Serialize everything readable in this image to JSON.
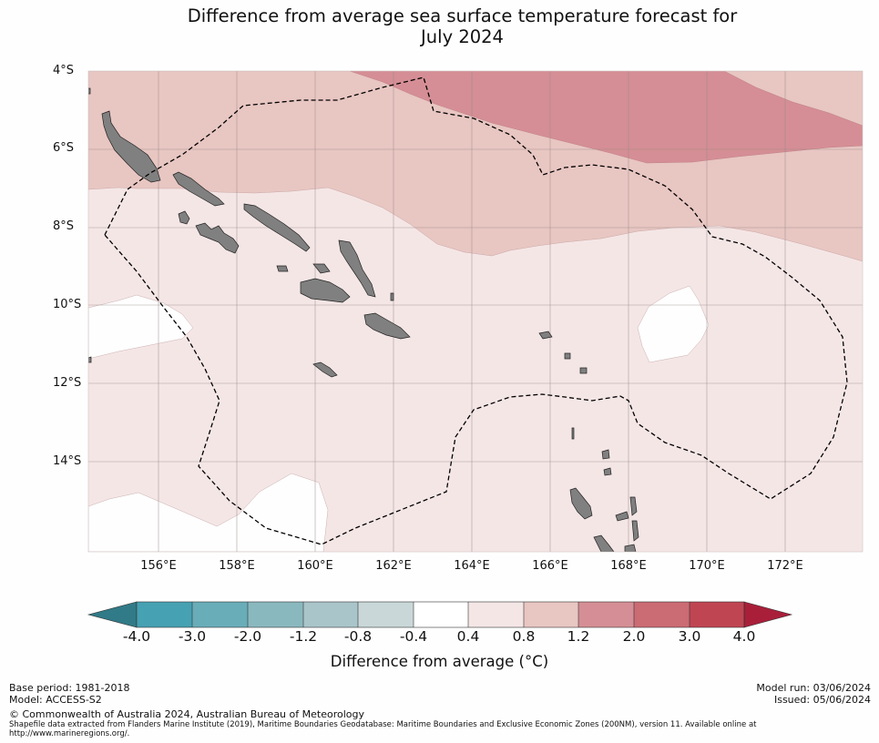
{
  "title": {
    "line1": "Difference from average sea surface temperature forecast for",
    "line2": "July 2024"
  },
  "map": {
    "lat_labels": [
      "4°S",
      "6°S",
      "8°S",
      "10°S",
      "12°S",
      "14°S"
    ],
    "lon_labels": [
      "156°E",
      "158°E",
      "160°E",
      "162°E",
      "164°E",
      "166°E",
      "168°E",
      "170°E",
      "172°E"
    ],
    "extent": {
      "lon_min": 154.2,
      "lon_max": 174.0,
      "lat_min": -16.3,
      "lat_max": -4.0
    },
    "colors": {
      "band_0_0.4": "#fefefe",
      "band_0.4_0.8": "#f5e6e6",
      "band_0.8_1.2": "#e8c6c2",
      "band_1.2_2.0": "#d58e95",
      "land": "#808080",
      "grid": "#9a8a8a",
      "eez_boundary": "#000000"
    }
  },
  "colorbar": {
    "labels": [
      "-4.0",
      "-3.0",
      "-2.0",
      "-1.2",
      "-0.8",
      "-0.4",
      "0.4",
      "0.8",
      "1.2",
      "2.0",
      "3.0",
      "4.0"
    ],
    "colors": [
      "#46a1b2",
      "#68adb8",
      "#8ab8bf",
      "#a9c5c9",
      "#c9d7d8",
      "#ffffff",
      "#f5e6e6",
      "#e8c6c2",
      "#d58e95",
      "#cb6b74",
      "#c04553"
    ],
    "under_color": "#317a87",
    "over_color": "#a91f3a",
    "title": "Difference from average (°C)"
  },
  "footer": {
    "base_period": "Base period: 1981-2018",
    "model": "Model: ACCESS-S2",
    "model_run": "Model run: 03/06/2024",
    "issued": "Issued: 05/06/2024",
    "copyright": "© Commonwealth of Australia 2024, Australian Bureau of Meteorology",
    "shapefile_line1": "Shapefile data extracted from Flanders Marine Institute (2019), Maritime Boundaries Geodatabase: Maritime Boundaries and Exclusive Economic Zones (200NM), version 11. Available online at",
    "shapefile_line2": "http://www.marineregions.org/."
  }
}
